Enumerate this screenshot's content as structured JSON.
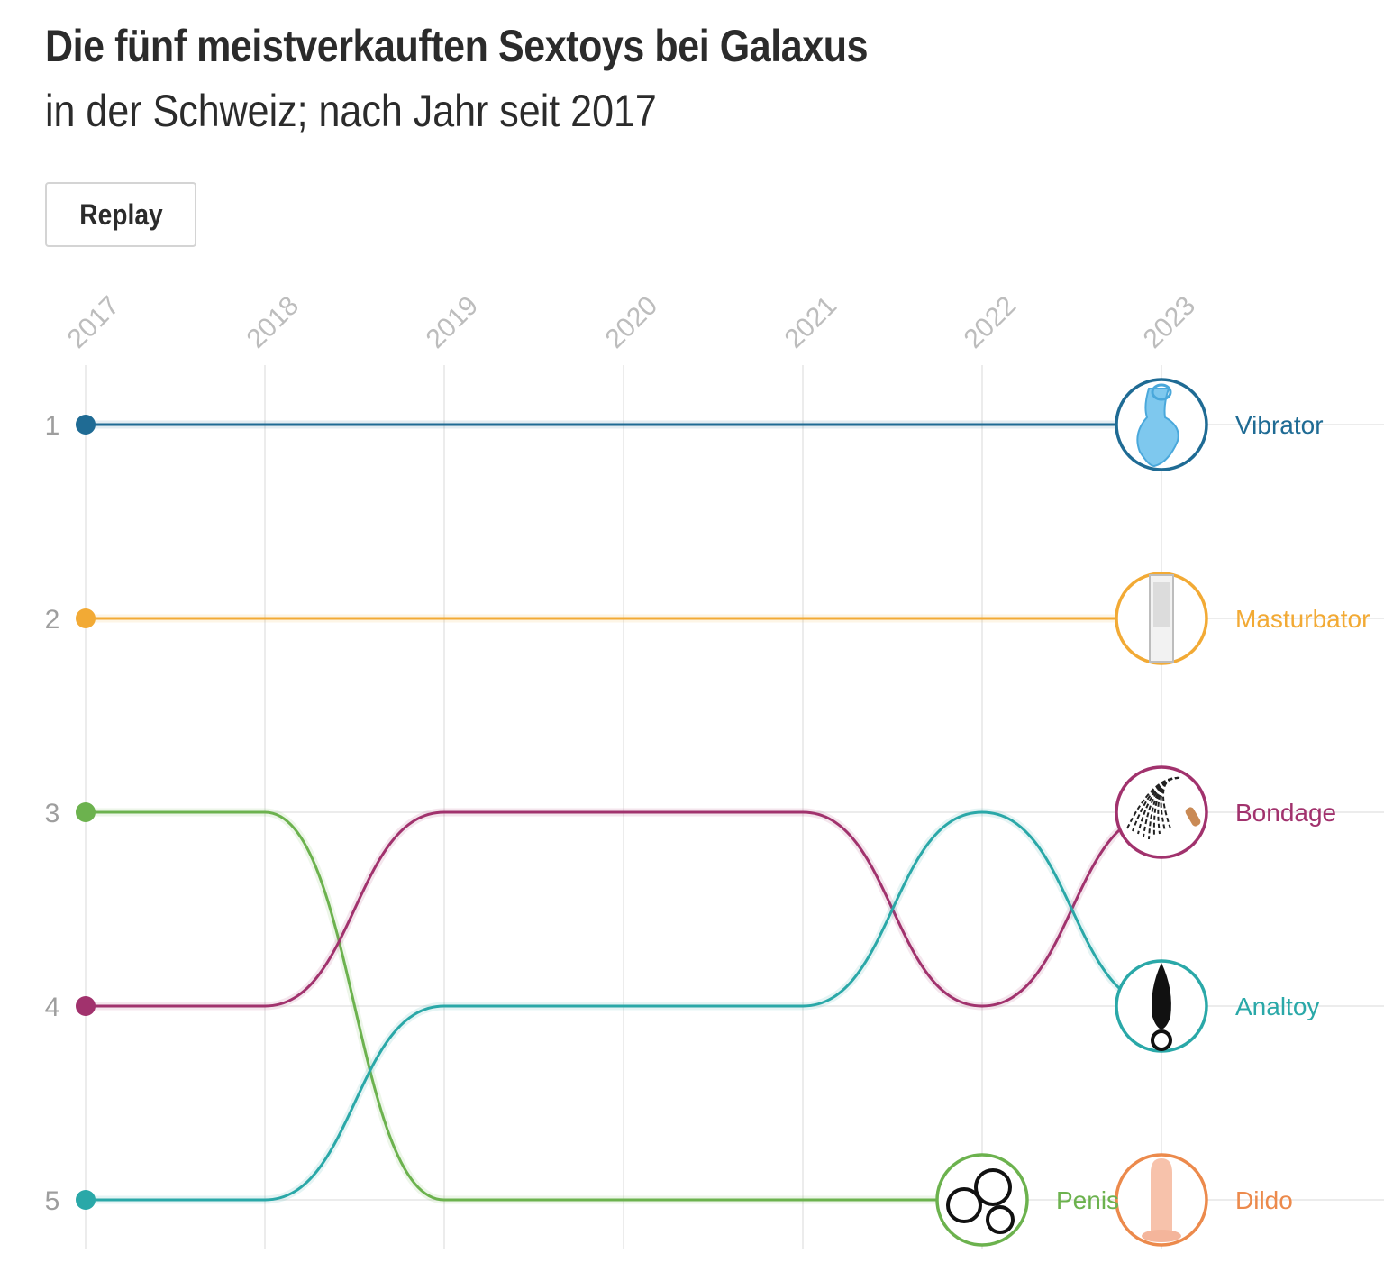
{
  "header": {
    "title": "Die fünf meistverkauften Sextoys bei Galaxus",
    "subtitle": "in der Schweiz; nach Jahr seit 2017",
    "replay_label": "Replay"
  },
  "chart_data": {
    "type": "line",
    "title": "Die fünf meistverkauften Sextoys bei Galaxus",
    "subtitle": "in der Schweiz; nach Jahr seit 2017",
    "x": [
      2017,
      2018,
      2019,
      2020,
      2021,
      2022,
      2023
    ],
    "y_ticks": [
      1,
      2,
      3,
      4,
      5
    ],
    "y_reversed": true,
    "ylim": [
      1,
      5
    ],
    "grid": true,
    "series": [
      {
        "name": "Vibrator",
        "color": "#1f6b94",
        "icon": "vibrator-icon",
        "values": [
          1,
          1,
          1,
          1,
          1,
          1,
          1
        ]
      },
      {
        "name": "Masturbator",
        "color": "#f2aa35",
        "icon": "masturbator-icon",
        "values": [
          2,
          2,
          2,
          2,
          2,
          2,
          2
        ]
      },
      {
        "name": "Penis",
        "color": "#6cb24e",
        "icon": "penis-ring-icon",
        "values": [
          3,
          3,
          5,
          5,
          5,
          5,
          null
        ]
      },
      {
        "name": "Bondage",
        "color": "#a1326d",
        "icon": "whip-icon",
        "values": [
          4,
          4,
          3,
          3,
          3,
          4,
          3
        ]
      },
      {
        "name": "Analtoy",
        "color": "#2aa8a8",
        "icon": "anal-plug-icon",
        "values": [
          5,
          5,
          4,
          4,
          4,
          3,
          4
        ]
      },
      {
        "name": "Dildo",
        "color": "#ec8a4c",
        "icon": "dildo-icon",
        "values": [
          null,
          null,
          null,
          null,
          null,
          null,
          5
        ]
      }
    ]
  }
}
